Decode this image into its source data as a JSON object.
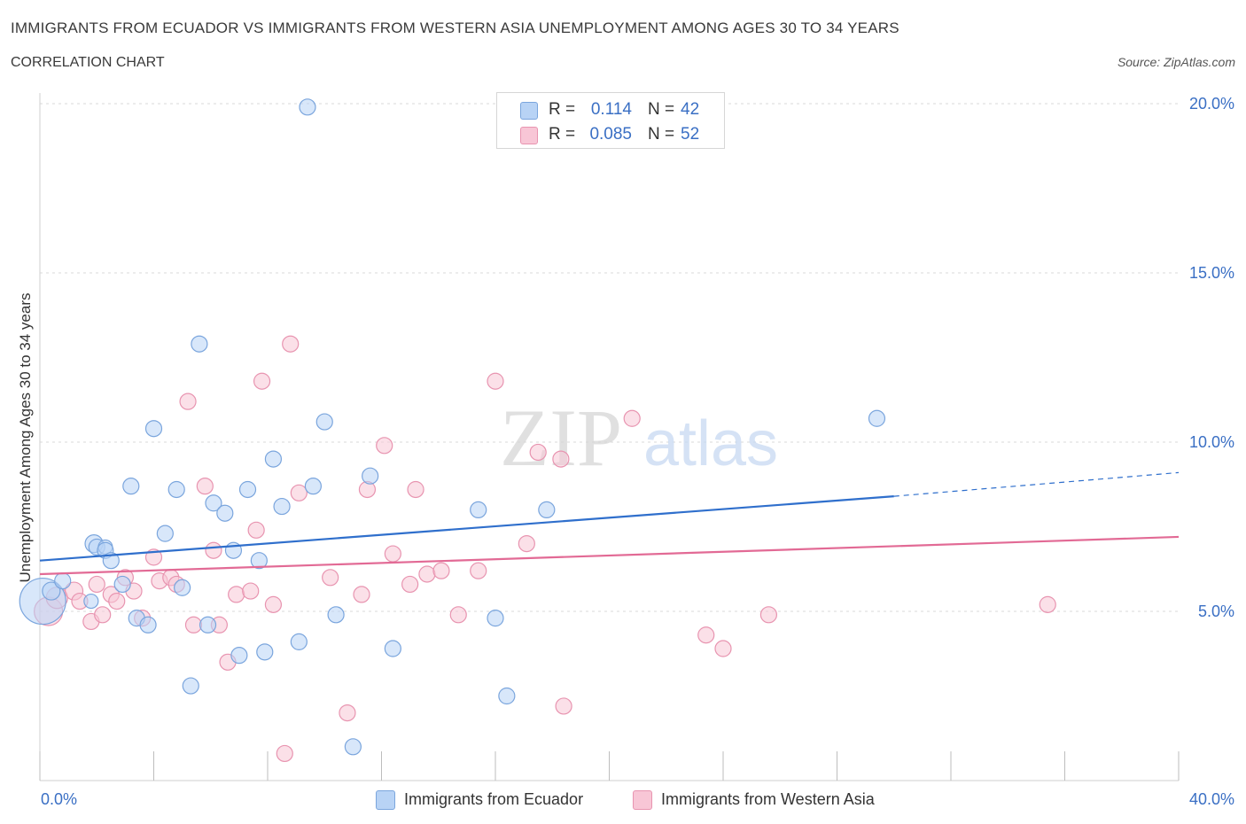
{
  "title": "IMMIGRANTS FROM ECUADOR VS IMMIGRANTS FROM WESTERN ASIA UNEMPLOYMENT AMONG AGES 30 TO 34 YEARS",
  "subtitle": "CORRELATION CHART",
  "source": "Source: ZipAtlas.com",
  "watermark": {
    "zip": "ZIP",
    "atlas": "atlas"
  },
  "colors": {
    "blue_fill": "#b8d3f5",
    "blue_stroke": "#7aa5dd",
    "blue_line": "#2f6fcc",
    "pink_fill": "#f8c6d6",
    "pink_stroke": "#e894b0",
    "pink_line": "#e26a95",
    "axis_text": "#3a6fc4",
    "grid": "#d9d9d9"
  },
  "legend_top": [
    {
      "r_label": "R =",
      "r_value": "0.114",
      "n_label": "N =",
      "n_value": "42",
      "color": "#b8d3f5"
    },
    {
      "r_label": "R =",
      "r_value": "0.085",
      "n_label": "N =",
      "n_value": "52",
      "color": "#f8c6d6"
    }
  ],
  "legend_bottom": [
    {
      "label": "Immigrants from Ecuador",
      "color": "#b8d3f5"
    },
    {
      "label": "Immigrants from Western Asia",
      "color": "#f8c6d6"
    }
  ],
  "chart_data": {
    "type": "scatter",
    "xlabel": "",
    "ylabel": "Unemployment Among Ages 30 to 34 years",
    "xlim": [
      0,
      40
    ],
    "ylim": [
      0,
      20
    ],
    "x_tick_labels": [
      "0.0%",
      "40.0%"
    ],
    "y_tick_labels": [
      {
        "value": 5,
        "label": "5.0%"
      },
      {
        "value": 10,
        "label": "10.0%"
      },
      {
        "value": 15,
        "label": "15.0%"
      },
      {
        "value": 20,
        "label": "20.0%"
      }
    ],
    "grid": true,
    "legend_position": "bottom",
    "series": [
      {
        "name": "Immigrants from Ecuador",
        "color": "#b8d3f5",
        "trend": {
          "x0": 0,
          "y0": 6.5,
          "x1": 30,
          "y1": 8.4,
          "dashed_to_x": 40,
          "dashed_to_y": 9.1
        },
        "points": [
          [
            0.1,
            5.3,
            26
          ],
          [
            0.4,
            5.6,
            10
          ],
          [
            0.8,
            5.9,
            9
          ],
          [
            1.9,
            7.0,
            10
          ],
          [
            2.0,
            6.9,
            9
          ],
          [
            2.3,
            6.9,
            8
          ],
          [
            1.8,
            5.3,
            8
          ],
          [
            2.3,
            6.8,
            9
          ],
          [
            2.5,
            6.5,
            9
          ],
          [
            2.9,
            5.8,
            9
          ],
          [
            3.2,
            8.7,
            9
          ],
          [
            3.4,
            4.8,
            9
          ],
          [
            3.8,
            4.6,
            9
          ],
          [
            4.0,
            10.4,
            9
          ],
          [
            4.4,
            7.3,
            9
          ],
          [
            4.8,
            8.6,
            9
          ],
          [
            5.0,
            5.7,
            9
          ],
          [
            5.3,
            2.8,
            9
          ],
          [
            5.6,
            12.9,
            9
          ],
          [
            5.9,
            4.6,
            9
          ],
          [
            6.1,
            8.2,
            9
          ],
          [
            6.5,
            7.9,
            9
          ],
          [
            6.8,
            6.8,
            9
          ],
          [
            7.0,
            3.7,
            9
          ],
          [
            7.3,
            8.6,
            9
          ],
          [
            7.7,
            6.5,
            9
          ],
          [
            7.9,
            3.8,
            9
          ],
          [
            8.2,
            9.5,
            9
          ],
          [
            8.5,
            8.1,
            9
          ],
          [
            9.1,
            4.1,
            9
          ],
          [
            9.6,
            8.7,
            9
          ],
          [
            9.4,
            19.9,
            9
          ],
          [
            10.0,
            10.6,
            9
          ],
          [
            10.4,
            4.9,
            9
          ],
          [
            11.0,
            1.0,
            9
          ],
          [
            11.6,
            9.0,
            9
          ],
          [
            12.4,
            3.9,
            9
          ],
          [
            15.4,
            8.0,
            9
          ],
          [
            16.0,
            4.8,
            9
          ],
          [
            16.4,
            2.5,
            9
          ],
          [
            17.8,
            8.0,
            9
          ],
          [
            29.4,
            10.7,
            9
          ]
        ]
      },
      {
        "name": "Immigrants from Western Asia",
        "color": "#f8c6d6",
        "trend": {
          "x0": 0,
          "y0": 6.1,
          "x1": 40,
          "y1": 7.2
        },
        "points": [
          [
            0.3,
            5.0,
            16
          ],
          [
            0.6,
            5.4,
            12
          ],
          [
            1.2,
            5.6,
            10
          ],
          [
            1.4,
            5.3,
            9
          ],
          [
            1.8,
            4.7,
            9
          ],
          [
            2.0,
            5.8,
            9
          ],
          [
            2.2,
            4.9,
            9
          ],
          [
            2.5,
            5.5,
            9
          ],
          [
            2.7,
            5.3,
            9
          ],
          [
            3.0,
            6.0,
            9
          ],
          [
            3.3,
            5.6,
            9
          ],
          [
            3.6,
            4.8,
            9
          ],
          [
            4.0,
            6.6,
            9
          ],
          [
            4.2,
            5.9,
            9
          ],
          [
            4.6,
            6.0,
            9
          ],
          [
            4.8,
            5.8,
            9
          ],
          [
            5.2,
            11.2,
            9
          ],
          [
            5.4,
            4.6,
            9
          ],
          [
            5.8,
            8.7,
            9
          ],
          [
            6.1,
            6.8,
            9
          ],
          [
            6.3,
            4.6,
            9
          ],
          [
            6.6,
            3.5,
            9
          ],
          [
            6.9,
            5.5,
            9
          ],
          [
            7.4,
            5.6,
            9
          ],
          [
            7.6,
            7.4,
            9
          ],
          [
            7.8,
            11.8,
            9
          ],
          [
            8.2,
            5.2,
            9
          ],
          [
            8.6,
            0.8,
            9
          ],
          [
            8.8,
            12.9,
            9
          ],
          [
            9.1,
            8.5,
            9
          ],
          [
            10.2,
            6.0,
            9
          ],
          [
            10.8,
            2.0,
            9
          ],
          [
            11.3,
            5.5,
            9
          ],
          [
            11.5,
            8.6,
            9
          ],
          [
            12.1,
            9.9,
            9
          ],
          [
            12.4,
            6.7,
            9
          ],
          [
            13.0,
            5.8,
            9
          ],
          [
            13.2,
            8.6,
            9
          ],
          [
            13.6,
            6.1,
            9
          ],
          [
            14.1,
            6.2,
            9
          ],
          [
            14.7,
            4.9,
            9
          ],
          [
            15.4,
            6.2,
            9
          ],
          [
            16.0,
            11.8,
            9
          ],
          [
            17.1,
            7.0,
            9
          ],
          [
            17.5,
            9.7,
            9
          ],
          [
            18.4,
            2.2,
            9
          ],
          [
            18.3,
            9.5,
            9
          ],
          [
            20.8,
            10.7,
            9
          ],
          [
            23.4,
            4.3,
            9
          ],
          [
            24.0,
            3.9,
            9
          ],
          [
            25.6,
            4.9,
            9
          ],
          [
            35.4,
            5.2,
            9
          ]
        ]
      }
    ]
  }
}
